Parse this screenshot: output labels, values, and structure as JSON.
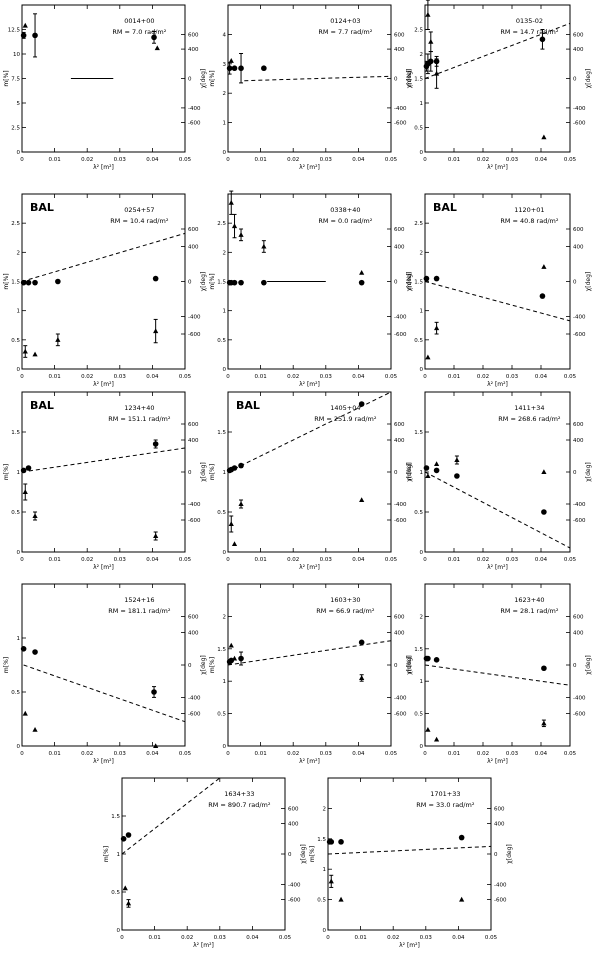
{
  "figure": {
    "x_axis_label": "λ² [m²]",
    "left_axis_label": "m[%]",
    "right_axis_label": "χ[deg]"
  },
  "chart_data": [
    {
      "type": "scatter",
      "name": "0014+00",
      "title": "0014+00",
      "annotation": "RM = 7.0 rad/m²",
      "bal": false,
      "xlim": [
        0,
        0.05
      ],
      "xticks": [
        0,
        0.01,
        0.02,
        0.03,
        0.04,
        0.05
      ],
      "ylim_left": [
        0,
        15
      ],
      "yticks_left": [
        0,
        2.5,
        5,
        7.5,
        10,
        12.5
      ],
      "ylim_right": [
        -1000,
        1000
      ],
      "yticks_right": [
        -600,
        -400,
        0,
        400,
        600
      ],
      "fit_style": "solid",
      "fit": {
        "x": [
          0.015,
          0.028
        ],
        "y": [
          0,
          0
        ]
      },
      "circles": {
        "x": [
          0.0005,
          0.004,
          0.0405
        ],
        "y": [
          11.9,
          11.9,
          11.7
        ],
        "err": [
          0.3,
          2.2,
          0.6
        ]
      },
      "triangles": {
        "x": [
          0.001,
          0.0415
        ],
        "y": [
          12.9,
          10.6
        ],
        "err": [
          0,
          0
        ]
      }
    },
    {
      "type": "scatter",
      "name": "0124+03",
      "title": "0124+03",
      "annotation": "RM = 7.7 rad/m²",
      "bal": false,
      "xlim": [
        0,
        0.05
      ],
      "xticks": [
        0,
        0.01,
        0.02,
        0.03,
        0.04,
        0.05
      ],
      "ylim_left": [
        0,
        5
      ],
      "yticks_left": [
        0,
        1,
        2,
        3,
        4
      ],
      "ylim_right": [
        -1000,
        1000
      ],
      "yticks_right": [
        -600,
        -400,
        0,
        400,
        600
      ],
      "fit_style": "dashed",
      "fit": {
        "x": [
          0.005,
          0.05
        ],
        "y": [
          -30,
          30
        ]
      },
      "circles": {
        "x": [
          0.0005,
          0.002,
          0.004,
          0.011
        ],
        "y": [
          2.85,
          2.85,
          2.85,
          2.85
        ],
        "err": [
          0.2,
          0,
          0.5,
          0
        ]
      },
      "triangles": {
        "x": [
          0.001
        ],
        "y": [
          3.1
        ],
        "err": [
          0
        ]
      }
    },
    {
      "type": "scatter",
      "name": "0135-02",
      "title": "0135-02",
      "annotation": "RM = 14.7 rad/m²",
      "bal": false,
      "xlim": [
        0,
        0.05
      ],
      "xticks": [
        0,
        0.01,
        0.02,
        0.03,
        0.04,
        0.05
      ],
      "ylim_left": [
        0,
        3
      ],
      "yticks_left": [
        0,
        0.5,
        1,
        1.5,
        2,
        2.5
      ],
      "ylim_right": [
        -1000,
        1000
      ],
      "yticks_right": [
        -600,
        -400,
        0,
        400,
        600
      ],
      "fit_style": "dashed",
      "fit": {
        "x": [
          0,
          0.05
        ],
        "y": [
          0,
          750
        ]
      },
      "circles": {
        "x": [
          0.0005,
          0.001,
          0.002,
          0.004,
          0.0405
        ],
        "y": [
          1.75,
          1.8,
          1.85,
          1.85,
          2.3
        ],
        "err": [
          0.1,
          0.2,
          0.2,
          0.1,
          0.2
        ]
      },
      "triangles": {
        "x": [
          0.001,
          0.002,
          0.004,
          0.041
        ],
        "y": [
          2.8,
          2.25,
          1.6,
          0.3
        ],
        "err": [
          0.3,
          0.2,
          0.3,
          0
        ]
      }
    },
    {
      "type": "scatter",
      "name": "0254+57",
      "title": "0254+57",
      "annotation": "RM = 10.4 rad/m²",
      "bal": true,
      "bal_label": "BAL",
      "xlim": [
        0,
        0.05
      ],
      "xticks": [
        0,
        0.01,
        0.02,
        0.03,
        0.04,
        0.05
      ],
      "ylim_left": [
        0,
        3
      ],
      "yticks_left": [
        0,
        0.5,
        1,
        1.5,
        2,
        2.5
      ],
      "ylim_right": [
        -1000,
        1000
      ],
      "yticks_right": [
        -600,
        -400,
        0,
        400,
        600
      ],
      "fit_style": "dashed",
      "fit": {
        "x": [
          0,
          0.05
        ],
        "y": [
          0,
          550
        ]
      },
      "circles": {
        "x": [
          0.0005,
          0.002,
          0.004,
          0.011,
          0.041
        ],
        "y": [
          1.48,
          1.48,
          1.48,
          1.5,
          1.55
        ],
        "err": [
          0,
          0,
          0,
          0,
          0
        ]
      },
      "triangles": {
        "x": [
          0.001,
          0.004,
          0.011,
          0.041
        ],
        "y": [
          0.3,
          0.25,
          0.5,
          0.65
        ],
        "err": [
          0.1,
          0,
          0.1,
          0.2
        ]
      }
    },
    {
      "type": "scatter",
      "name": "0338+40",
      "title": "0338+40",
      "annotation": "RM = 0.0 rad/m²",
      "bal": false,
      "xlim": [
        0,
        0.05
      ],
      "xticks": [
        0,
        0.01,
        0.02,
        0.03,
        0.04,
        0.05
      ],
      "ylim_left": [
        0,
        3
      ],
      "yticks_left": [
        0,
        0.5,
        1,
        1.5,
        2,
        2.5
      ],
      "ylim_right": [
        -1000,
        1000
      ],
      "yticks_right": [
        -600,
        -400,
        0,
        400,
        600
      ],
      "fit_style": "solid",
      "fit": {
        "x": [
          0.012,
          0.03
        ],
        "y": [
          0,
          0
        ]
      },
      "circles": {
        "x": [
          0.0005,
          0.001,
          0.002,
          0.004,
          0.011,
          0.041
        ],
        "y": [
          1.48,
          1.48,
          1.48,
          1.48,
          1.48,
          1.48
        ],
        "err": [
          0,
          0,
          0,
          0,
          0,
          0
        ]
      },
      "triangles": {
        "x": [
          0.001,
          0.002,
          0.004,
          0.011,
          0.041
        ],
        "y": [
          2.85,
          2.45,
          2.3,
          2.1,
          1.65
        ],
        "err": [
          0.2,
          0.2,
          0.1,
          0.1,
          0
        ]
      }
    },
    {
      "type": "scatter",
      "name": "1120+01",
      "title": "1120+01",
      "annotation": "RM = 40.8 rad/m²",
      "bal": true,
      "bal_label": "BAL",
      "xlim": [
        0,
        0.05
      ],
      "xticks": [
        0,
        0.01,
        0.02,
        0.03,
        0.04,
        0.05
      ],
      "ylim_left": [
        0,
        3
      ],
      "yticks_left": [
        0,
        0.5,
        1,
        1.5,
        2,
        2.5
      ],
      "ylim_right": [
        -1000,
        1000
      ],
      "yticks_right": [
        -600,
        -400,
        0,
        400,
        600
      ],
      "fit_style": "dashed",
      "fit": {
        "x": [
          0,
          0.05
        ],
        "y": [
          0,
          -450
        ]
      },
      "circles": {
        "x": [
          0.0005,
          0.004,
          0.0405
        ],
        "y": [
          1.55,
          1.55,
          1.25
        ],
        "err": [
          0,
          0,
          0
        ]
      },
      "triangles": {
        "x": [
          0.001,
          0.004,
          0.041
        ],
        "y": [
          0.2,
          0.7,
          1.75
        ],
        "err": [
          0,
          0.1,
          0
        ]
      }
    },
    {
      "type": "scatter",
      "name": "1234+40",
      "title": "1234+40",
      "annotation": "RM = 151.1 rad/m²",
      "bal": true,
      "bal_label": "BAL",
      "xlim": [
        0,
        0.05
      ],
      "xticks": [
        0,
        0.01,
        0.02,
        0.03,
        0.04,
        0.05
      ],
      "ylim_left": [
        0,
        2
      ],
      "yticks_left": [
        0,
        0.5,
        1,
        1.5
      ],
      "ylim_right": [
        -1000,
        1000
      ],
      "yticks_right": [
        -600,
        -400,
        0,
        400,
        600
      ],
      "fit_style": "dotted",
      "fit": {
        "x": [
          0,
          0.05
        ],
        "y": [
          0,
          300
        ]
      },
      "circles": {
        "x": [
          0.0005,
          0.002,
          0.041
        ],
        "y": [
          1.02,
          1.05,
          1.35
        ],
        "err": [
          0,
          0,
          0.05
        ]
      },
      "triangles": {
        "x": [
          0.001,
          0.004,
          0.041
        ],
        "y": [
          0.75,
          0.45,
          0.2
        ],
        "err": [
          0.1,
          0.05,
          0.05
        ]
      }
    },
    {
      "type": "scatter",
      "name": "1405+04",
      "title": "1405+04",
      "annotation": "RM = 251.9 rad/m²",
      "bal": true,
      "bal_label": "BAL",
      "xlim": [
        0,
        0.05
      ],
      "xticks": [
        0,
        0.01,
        0.02,
        0.03,
        0.04,
        0.05
      ],
      "ylim_left": [
        0,
        2
      ],
      "yticks_left": [
        0,
        0.5,
        1,
        1.5
      ],
      "ylim_right": [
        -1000,
        1000
      ],
      "yticks_right": [
        -600,
        -400,
        0,
        400,
        600
      ],
      "fit_style": "dotted",
      "fit": {
        "x": [
          0,
          0.05
        ],
        "y": [
          0,
          1000
        ]
      },
      "circles": {
        "x": [
          0.0005,
          0.001,
          0.002,
          0.004,
          0.041
        ],
        "y": [
          1.02,
          1.03,
          1.05,
          1.08,
          1.85
        ],
        "err": [
          0,
          0,
          0,
          0,
          0
        ]
      },
      "triangles": {
        "x": [
          0.001,
          0.002,
          0.004,
          0.041
        ],
        "y": [
          0.35,
          0.1,
          0.6,
          0.65
        ],
        "err": [
          0.1,
          0,
          0.05,
          0
        ]
      }
    },
    {
      "type": "scatter",
      "name": "1411+34",
      "title": "1411+34",
      "annotation": "RM = 268.6 rad/m²",
      "bal": false,
      "xlim": [
        0,
        0.05
      ],
      "xticks": [
        0,
        0.01,
        0.02,
        0.03,
        0.04,
        0.05
      ],
      "ylim_left": [
        0,
        2
      ],
      "yticks_left": [
        0,
        0.5,
        1,
        1.5
      ],
      "ylim_right": [
        -1000,
        1000
      ],
      "yticks_right": [
        -600,
        -400,
        0,
        400,
        600
      ],
      "fit_style": "dotted",
      "fit": {
        "x": [
          0,
          0.05
        ],
        "y": [
          0,
          -950
        ]
      },
      "circles": {
        "x": [
          0.0005,
          0.004,
          0.011,
          0.041
        ],
        "y": [
          1.05,
          1.02,
          0.95,
          0.5
        ],
        "err": [
          0,
          0,
          0,
          0
        ]
      },
      "triangles": {
        "x": [
          0.001,
          0.004,
          0.011,
          0.041
        ],
        "y": [
          0.95,
          1.1,
          1.15,
          1.0
        ],
        "err": [
          0,
          0,
          0.05,
          0
        ]
      }
    },
    {
      "type": "scatter",
      "name": "1524+16",
      "title": "1524+16",
      "annotation": "RM = 181.1 rad/m²",
      "bal": false,
      "xlim": [
        0,
        0.05
      ],
      "xticks": [
        0,
        0.01,
        0.02,
        0.03,
        0.04,
        0.05
      ],
      "ylim_left": [
        0,
        1.5
      ],
      "yticks_left": [
        0,
        0.5,
        1
      ],
      "ylim_right": [
        -1000,
        1000
      ],
      "yticks_right": [
        -600,
        -400,
        0,
        400,
        600
      ],
      "fit_style": "dotted",
      "fit": {
        "x": [
          0.0005,
          0.05
        ],
        "y": [
          0,
          -700
        ]
      },
      "circles": {
        "x": [
          0.0005,
          0.004,
          0.0405
        ],
        "y": [
          0.9,
          0.87,
          0.5
        ],
        "err": [
          0,
          0,
          0.05
        ]
      },
      "triangles": {
        "x": [
          0.001,
          0.004,
          0.041
        ],
        "y": [
          0.3,
          0.15,
          0.0
        ],
        "err": [
          0,
          0,
          0
        ]
      }
    },
    {
      "type": "scatter",
      "name": "1603+30",
      "title": "1603+30",
      "annotation": "RM = 66.9 rad/m²",
      "bal": false,
      "xlim": [
        0,
        0.05
      ],
      "xticks": [
        0,
        0.01,
        0.02,
        0.03,
        0.04,
        0.05
      ],
      "ylim_left": [
        0,
        2.5
      ],
      "yticks_left": [
        0,
        0.5,
        1,
        1.5,
        2
      ],
      "ylim_right": [
        -1000,
        1000
      ],
      "yticks_right": [
        -600,
        -400,
        0,
        400,
        600
      ],
      "fit_style": "dashed",
      "fit": {
        "x": [
          0,
          0.05
        ],
        "y": [
          0,
          300
        ]
      },
      "circles": {
        "x": [
          0.0005,
          0.001,
          0.004,
          0.041
        ],
        "y": [
          1.3,
          1.32,
          1.35,
          1.6
        ],
        "err": [
          0,
          0,
          0.1,
          0
        ]
      },
      "triangles": {
        "x": [
          0.001,
          0.002,
          0.041
        ],
        "y": [
          1.55,
          1.35,
          1.05
        ],
        "err": [
          0,
          0,
          0.05
        ]
      }
    },
    {
      "type": "scatter",
      "name": "1623+40",
      "title": "1623+40",
      "annotation": "RM = 28.1 rad/m²",
      "bal": false,
      "xlim": [
        0,
        0.05
      ],
      "xticks": [
        0,
        0.01,
        0.02,
        0.03,
        0.04,
        0.05
      ],
      "ylim_left": [
        0,
        2.5
      ],
      "yticks_left": [
        0,
        0.5,
        1,
        1.5,
        2
      ],
      "ylim_right": [
        -1000,
        1000
      ],
      "yticks_right": [
        -600,
        -400,
        0,
        400,
        600
      ],
      "fit_style": "dashed",
      "fit": {
        "x": [
          0,
          0.05
        ],
        "y": [
          0,
          -250
        ]
      },
      "circles": {
        "x": [
          0.0005,
          0.001,
          0.004,
          0.041
        ],
        "y": [
          1.35,
          1.35,
          1.33,
          1.2
        ],
        "err": [
          0,
          0,
          0,
          0
        ]
      },
      "triangles": {
        "x": [
          0.001,
          0.004,
          0.041
        ],
        "y": [
          0.25,
          0.1,
          0.35
        ],
        "err": [
          0,
          0,
          0.05
        ]
      }
    },
    {
      "type": "scatter",
      "name": "1634+33",
      "title": "1634+33",
      "annotation": "RM = 890.7 rad/m²",
      "bal": false,
      "xlim": [
        0,
        0.05
      ],
      "xticks": [
        0,
        0.01,
        0.02,
        0.03,
        0.04,
        0.05
      ],
      "ylim_left": [
        0,
        2
      ],
      "yticks_left": [
        0,
        0.5,
        1,
        1.5
      ],
      "ylim_right": [
        -1000,
        1000
      ],
      "yticks_right": [
        -600,
        -400,
        0,
        400,
        600
      ],
      "fit_style": "dotted",
      "fit": {
        "x": [
          0,
          0.03
        ],
        "y": [
          0,
          1000
        ]
      },
      "circles": {
        "x": [
          0.0005,
          0.002
        ],
        "y": [
          1.2,
          1.25
        ],
        "err": [
          0,
          0
        ]
      },
      "triangles": {
        "x": [
          0.001,
          0.002
        ],
        "y": [
          0.55,
          0.35
        ],
        "err": [
          0,
          0.05
        ]
      }
    },
    {
      "type": "scatter",
      "name": "1701+33",
      "title": "1701+33",
      "annotation": "RM = 33.0 rad/m²",
      "bal": false,
      "xlim": [
        0,
        0.05
      ],
      "xticks": [
        0,
        0.01,
        0.02,
        0.03,
        0.04,
        0.05
      ],
      "ylim_left": [
        0,
        2.5
      ],
      "yticks_left": [
        0,
        0.5,
        1,
        1.5,
        2
      ],
      "ylim_right": [
        -1000,
        1000
      ],
      "yticks_right": [
        -600,
        -400,
        0,
        400,
        600
      ],
      "fit_style": "dashed",
      "fit": {
        "x": [
          0,
          0.05
        ],
        "y": [
          0,
          100
        ]
      },
      "circles": {
        "x": [
          0.0005,
          0.001,
          0.004,
          0.041
        ],
        "y": [
          1.45,
          1.45,
          1.45,
          1.52
        ],
        "err": [
          0,
          0,
          0,
          0
        ]
      },
      "triangles": {
        "x": [
          0.001,
          0.004,
          0.041
        ],
        "y": [
          0.8,
          0.5,
          0.5
        ],
        "err": [
          0.1,
          0,
          0
        ]
      }
    }
  ]
}
